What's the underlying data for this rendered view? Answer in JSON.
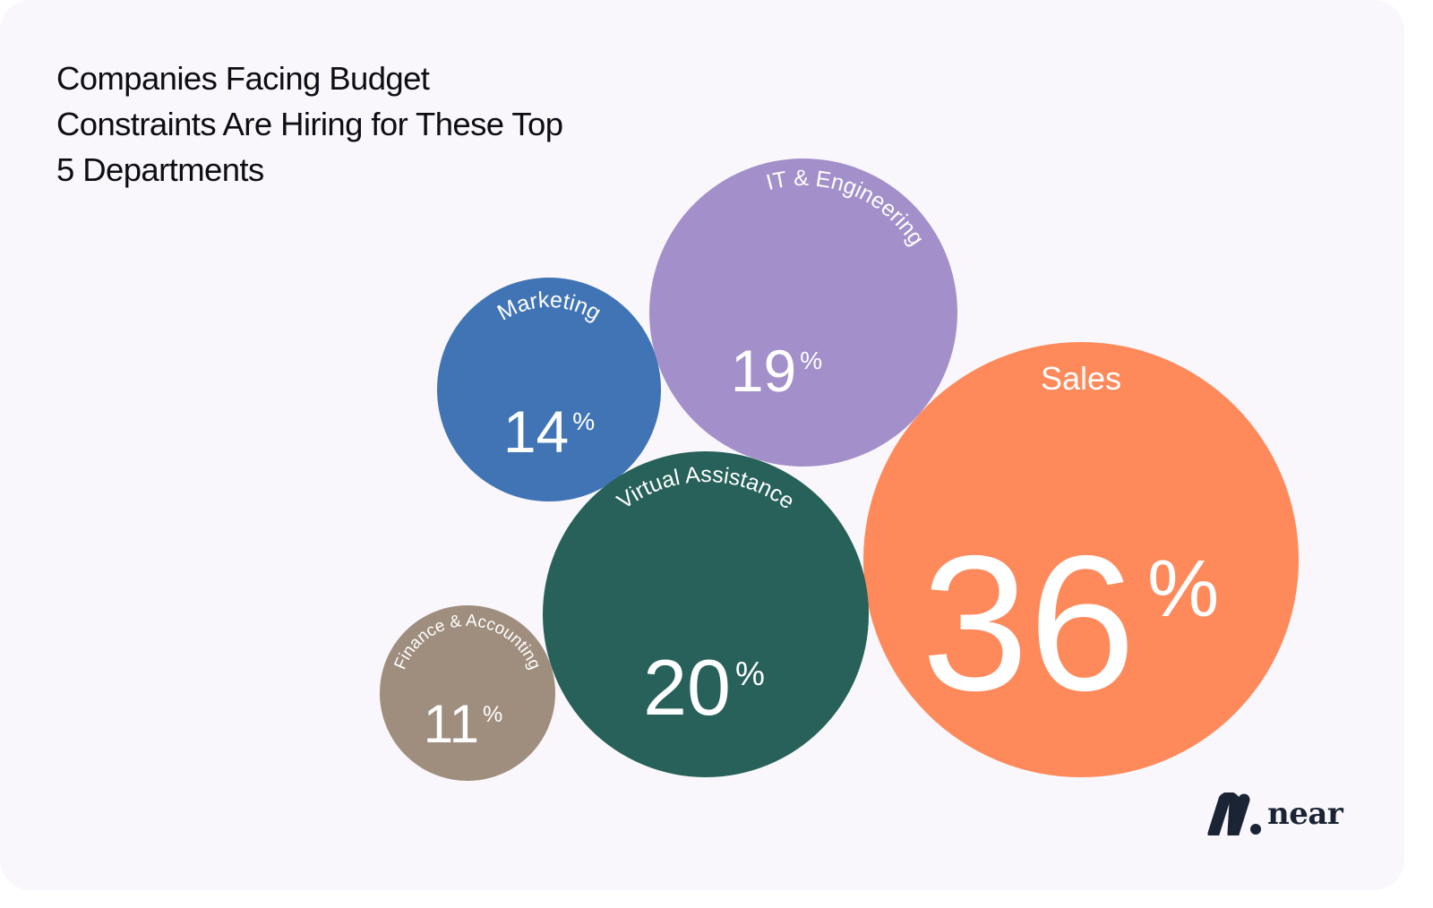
{
  "title_lines": [
    "Companies Facing Budget",
    "Constraints Are Hiring for These Top",
    "5 Departments"
  ],
  "logo": {
    "text": "near",
    "icon": "near-logo-mark-icon",
    "color": "#1b2434"
  },
  "chart_data": {
    "type": "bubble",
    "title": "Companies Facing Budget Constraints Are Hiring for These Top 5 Departments",
    "unit": "%",
    "categories": [
      "Marketing",
      "IT & Engineering",
      "Sales",
      "Virtual Assistance",
      "Finance & Accounting"
    ],
    "values": [
      14,
      19,
      36,
      20,
      11
    ],
    "colors": [
      "#4074b5",
      "#a38fc9",
      "#fe8a5b",
      "#27615a",
      "#9f8e7e"
    ]
  }
}
